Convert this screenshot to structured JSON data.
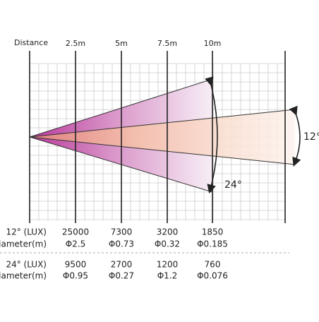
{
  "header": {
    "distance_label": "Distance",
    "distances": [
      "2.5m",
      "5m",
      "7.5m",
      "10m"
    ]
  },
  "angles": {
    "wide": "24°",
    "narrow": "12°"
  },
  "table": {
    "rows": [
      {
        "label": "12° (LUX)",
        "lux": [
          25000,
          7300,
          3200,
          1850
        ],
        "diameter_label": "Diameter(m)",
        "diameters": [
          "Φ2.5",
          "Φ0.73",
          "Φ0.32",
          "Φ0.185"
        ]
      },
      {
        "label": "24° (LUX)",
        "lux": [
          9500,
          2700,
          1200,
          760
        ],
        "diameter_label": "Diameter(m)",
        "diameters": [
          "Φ0.95",
          "Φ0.27",
          "Φ1.2",
          "Φ0.076"
        ]
      }
    ]
  }
}
